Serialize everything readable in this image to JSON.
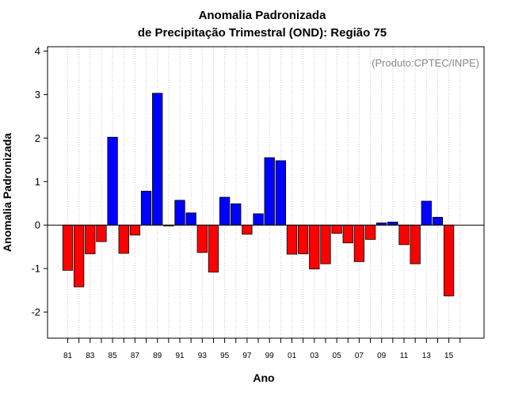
{
  "chart_data": {
    "type": "bar",
    "title_line1": "Anomalia Padronizada",
    "title_line2": "de Precipitação Trimestral (OND): Região 75",
    "xlabel": "Ano",
    "ylabel": "Anomalia Padronizada",
    "credit": "(Produto:CPTEC/INPE)",
    "ylim": [
      -2.6,
      4.1
    ],
    "yticks": [
      "-2",
      "-1",
      "0",
      "1",
      "2",
      "3",
      "4"
    ],
    "ytick_values": [
      -2,
      -1,
      0,
      1,
      2,
      3,
      4
    ],
    "xtick_labels": [
      "81",
      "83",
      "85",
      "87",
      "89",
      "91",
      "93",
      "95",
      "97",
      "99",
      "01",
      "03",
      "05",
      "07",
      "09",
      "11",
      "13",
      "15"
    ],
    "xtick_indices": [
      0,
      2,
      4,
      6,
      8,
      10,
      12,
      14,
      16,
      18,
      20,
      22,
      24,
      26,
      28,
      30,
      32,
      34
    ],
    "categories": [
      "1981",
      "1982",
      "1983",
      "1984",
      "1985",
      "1986",
      "1987",
      "1988",
      "1989",
      "1990",
      "1991",
      "1992",
      "1993",
      "1994",
      "1995",
      "1996",
      "1997",
      "1998",
      "1999",
      "2000",
      "2001",
      "2002",
      "2003",
      "2004",
      "2005",
      "2006",
      "2007",
      "2008",
      "2009",
      "2010",
      "2011",
      "2012",
      "2013",
      "2014",
      "2015"
    ],
    "values": [
      -1.04,
      -1.42,
      -0.66,
      -0.38,
      2.02,
      -0.65,
      -0.23,
      0.78,
      3.03,
      -0.02,
      0.57,
      0.28,
      -0.63,
      -1.08,
      0.64,
      0.49,
      -0.21,
      0.26,
      1.55,
      1.48,
      -0.67,
      -0.66,
      -1.01,
      -0.89,
      -0.19,
      -0.41,
      -0.84,
      -0.33,
      0.05,
      0.07,
      -0.45,
      -0.89,
      0.55,
      0.18,
      -1.63
    ],
    "colors": {
      "positive": "#0000ff",
      "negative": "#ff0000",
      "grid": "#c8c8c8",
      "credit": "#888888"
    }
  }
}
